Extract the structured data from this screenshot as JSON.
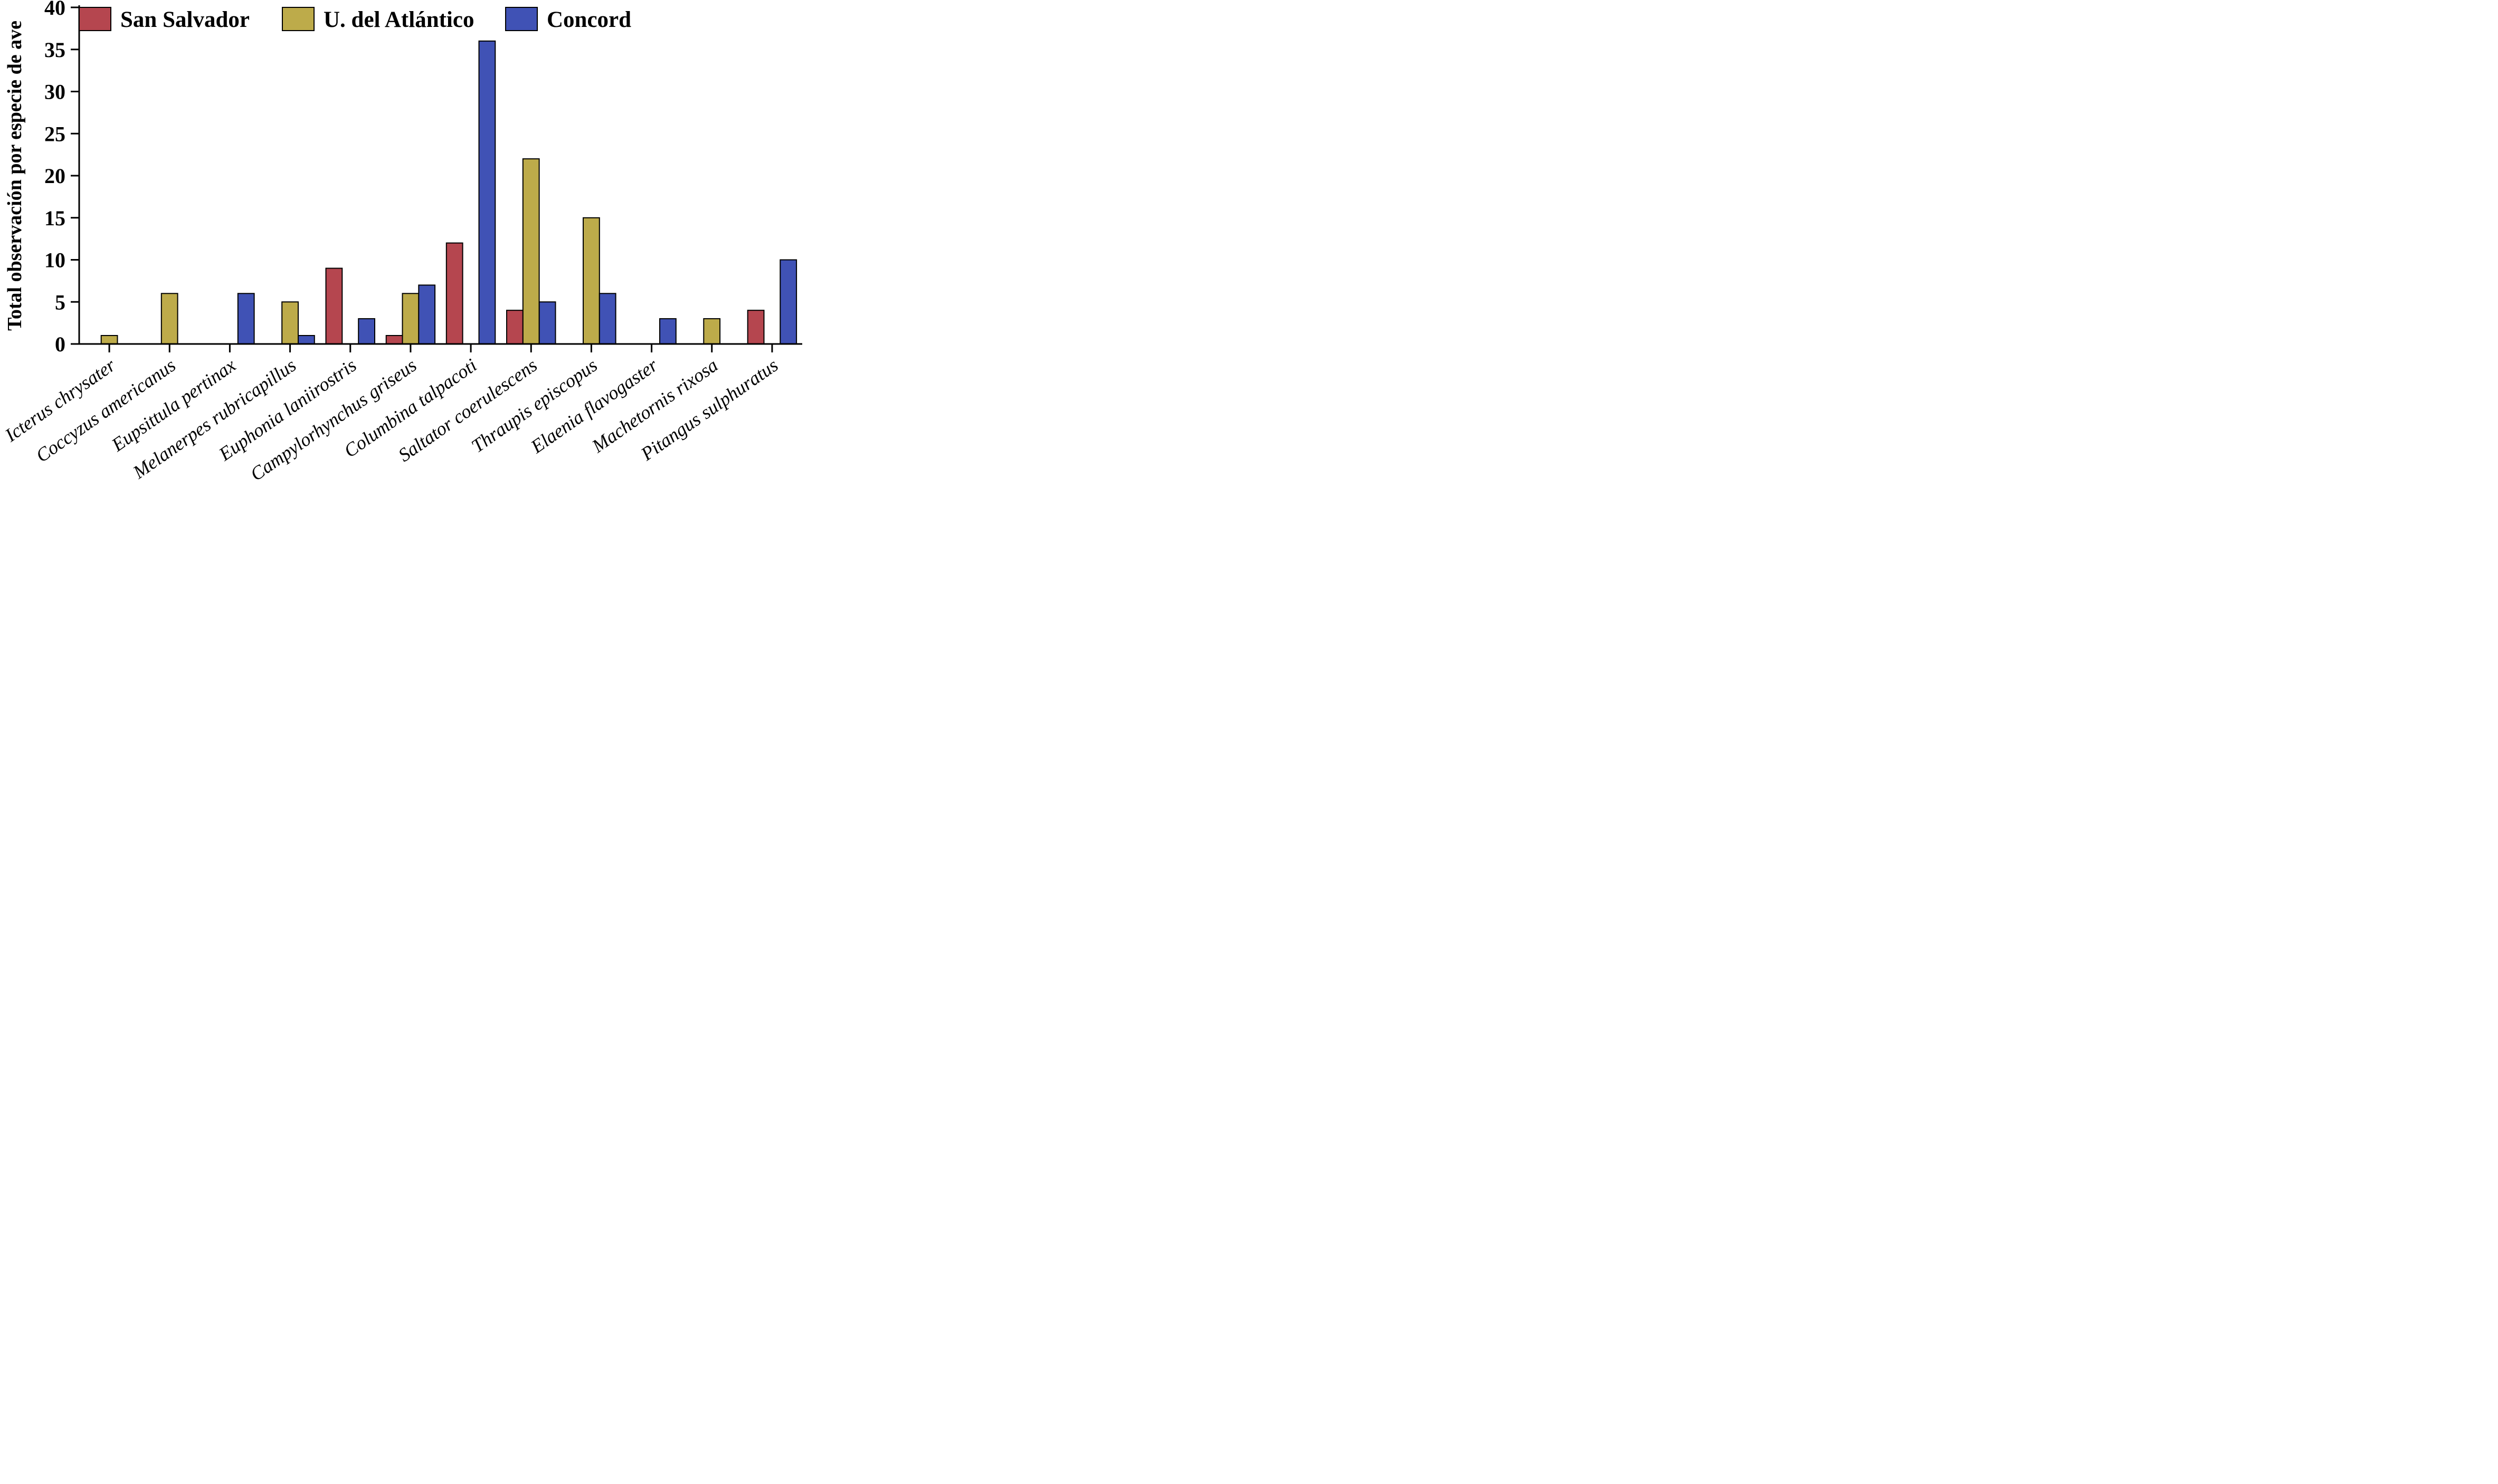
{
  "chart_data": {
    "type": "bar",
    "title": "",
    "ylabel": "Total observación por especie de ave",
    "xlabel": "",
    "ylim": [
      0,
      40
    ],
    "yticks": [
      0,
      5,
      10,
      15,
      20,
      25,
      30,
      35,
      40
    ],
    "grid": false,
    "legend_position": "top-inside-horizontal",
    "bar_edge_color": "#000000",
    "axis_color": "#000000",
    "categories": [
      "Icterus chrysater",
      "Coccyzus americanus",
      "Eupsittula pertinax",
      "Melanerpes rubricapillus",
      "Euphonia laniirostris",
      "Campylorhynchus griseus",
      "Columbina talpacoti",
      "Saltator coerulescens",
      "Thraupis episcopus",
      "Elaenia flavogaster",
      "Machetornis rixosa",
      "Pitangus sulphuratus"
    ],
    "series": [
      {
        "name": "San Salvador",
        "color": "#b5464f",
        "values": [
          0,
          0,
          0,
          0,
          9,
          1,
          12,
          4,
          0,
          0,
          0,
          4
        ]
      },
      {
        "name": "U. del Atlántico",
        "color": "#bdab4a",
        "values": [
          1,
          6,
          0,
          5,
          0,
          6,
          0,
          22,
          15,
          0,
          3,
          0
        ]
      },
      {
        "name": "Concord",
        "color": "#4052b5",
        "values": [
          0,
          0,
          6,
          1,
          3,
          7,
          36,
          5,
          6,
          3,
          0,
          10
        ]
      }
    ]
  }
}
